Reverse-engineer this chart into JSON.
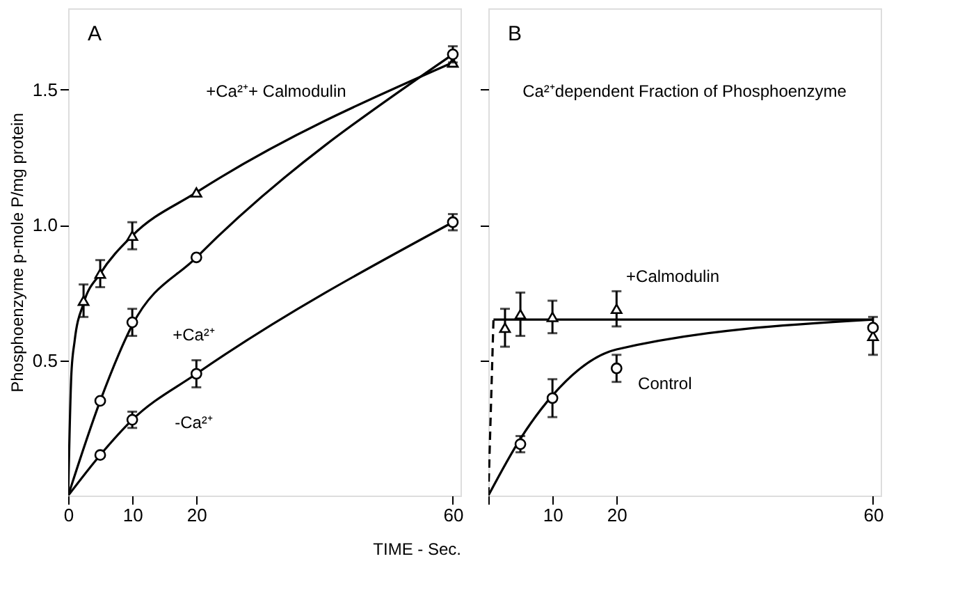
{
  "chart_data": [
    {
      "type": "scatter",
      "title": "A",
      "xlabel": "TIME - Sec.",
      "ylabel": "Phosphoenzyme  p-mole P/mg protein",
      "xlim": [
        0,
        61.2
      ],
      "xticks": [
        0,
        10,
        20,
        60
      ],
      "ylim": [
        0,
        1.8
      ],
      "yticks": [
        {
          "value": 0.5,
          "label": "0.5"
        },
        {
          "value": 1,
          "label": "1.0"
        },
        {
          "value": 1.5,
          "label": "1.5"
        }
      ],
      "grid": false,
      "series": [
        {
          "type": "line",
          "marker": "none",
          "line_style": "solid",
          "color": "#000000",
          "x": [
            0,
            0.5,
            1,
            2.4,
            5,
            10,
            20,
            60
          ],
          "values": [
            0,
            0.45,
            0.57,
            0.71,
            0.82,
            0.96,
            1.12,
            1.6
          ]
        },
        {
          "type": "line",
          "marker": "none",
          "line_style": "solid",
          "color": "#000000",
          "x": [
            0,
            5,
            10,
            20,
            60
          ],
          "values": [
            0,
            0.35,
            0.63,
            0.88,
            1.63
          ]
        },
        {
          "type": "line",
          "marker": "none",
          "line_style": "solid",
          "color": "#000000",
          "x": [
            0,
            5,
            10,
            20,
            60
          ],
          "values": [
            0,
            0.15,
            0.28,
            0.45,
            1.01
          ]
        },
        {
          "marker": "triangle",
          "color": "#000000",
          "x": [
            2.4,
            5,
            10,
            20,
            60
          ],
          "values": [
            0.72,
            0.82,
            0.96,
            1.12,
            1.6
          ],
          "errors": [
            0.06,
            0.05,
            0.05,
            null,
            null
          ]
        },
        {
          "marker": "circle",
          "color": "#000000",
          "x": [
            5,
            10,
            20,
            60
          ],
          "values": [
            0.35,
            0.64,
            0.88,
            1.63
          ],
          "errors": [
            null,
            0.05,
            null,
            0.03
          ]
        },
        {
          "marker": "circle",
          "color": "#000000",
          "x": [
            5,
            10,
            20,
            60
          ],
          "values": [
            0.15,
            0.28,
            0.45,
            1.01
          ],
          "errors": [
            null,
            0.03,
            0.05,
            0.03
          ]
        }
      ],
      "annotations": [
        "+Ca²⁺+ Calmodulin",
        "+Ca²⁺",
        "-Ca²⁺"
      ]
    },
    {
      "type": "scatter",
      "title": "B",
      "xlim": [
        0,
        61.2
      ],
      "xticks": [
        {
          "value": 0,
          "label": null
        },
        10,
        20,
        60
      ],
      "ylim": [
        0,
        1.8
      ],
      "yticks": [
        0.5,
        1,
        1.5
      ],
      "tick_labels": "x",
      "grid": false,
      "series": [
        {
          "type": "line",
          "marker": "none",
          "line_style": "dashed",
          "color": "#000000",
          "x": [
            0,
            0.8
          ],
          "values": [
            0,
            0.65
          ]
        },
        {
          "type": "line",
          "marker": "none",
          "line_style": "solid",
          "color": "#000000",
          "x": [
            0.8,
            60
          ],
          "values": [
            0.65,
            0.65
          ]
        },
        {
          "type": "line",
          "marker": "none",
          "line_style": "solid",
          "color": "#000000",
          "x": [
            0,
            5,
            10,
            20,
            60
          ],
          "values": [
            0,
            0.21,
            0.37,
            0.54,
            0.65
          ]
        },
        {
          "marker": "triangle",
          "color": "#000000",
          "x": [
            2.6,
            5,
            10,
            20,
            60
          ],
          "values": [
            0.62,
            0.67,
            0.66,
            0.69,
            0.59
          ],
          "errors": [
            0.07,
            0.08,
            0.06,
            0.065,
            0.07
          ]
        },
        {
          "marker": "circle",
          "color": "#000000",
          "x": [
            5,
            10,
            20,
            60
          ],
          "values": [
            0.19,
            0.36,
            0.47,
            0.62
          ],
          "errors": [
            0.03,
            0.07,
            0.05,
            null
          ]
        }
      ],
      "annotations": [
        "Ca²⁺dependent Fraction of Phosphoenzyme",
        "+Calmodulin",
        "Control"
      ]
    }
  ]
}
